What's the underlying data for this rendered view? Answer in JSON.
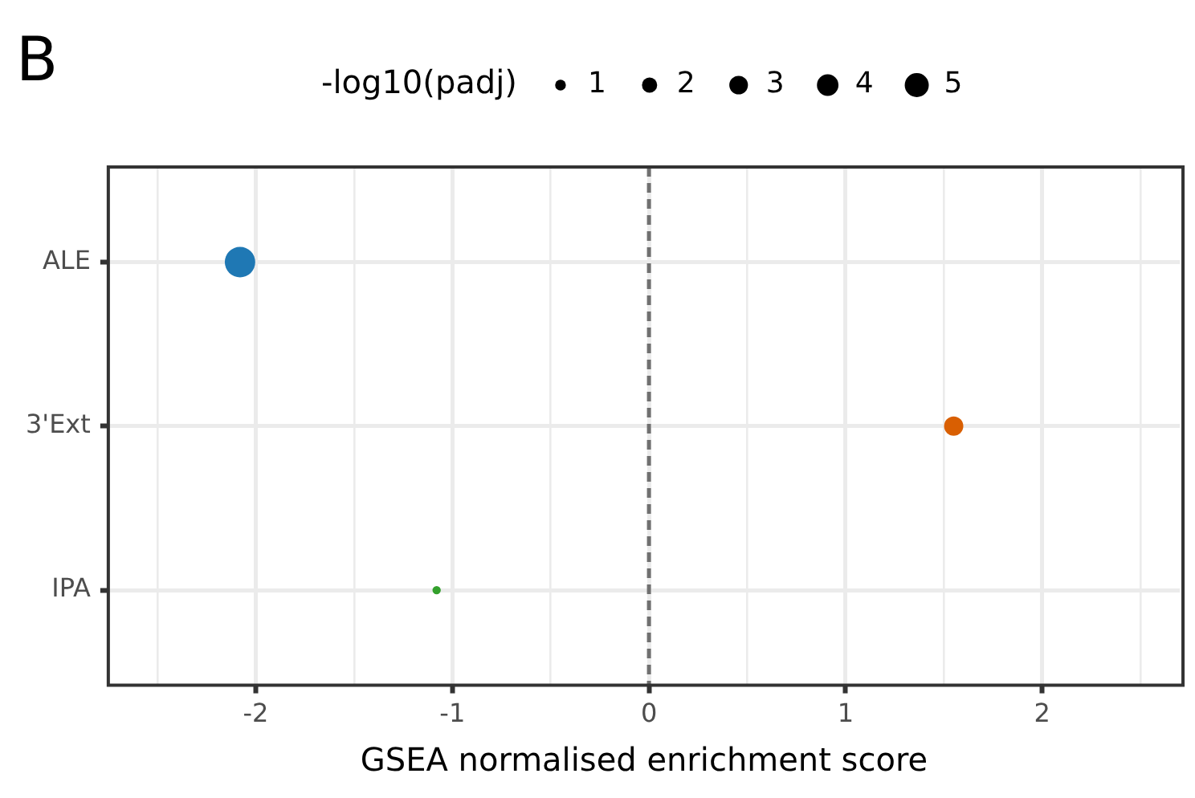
{
  "chart_data": {
    "type": "bubble",
    "orientation": "horizontal",
    "annotations": [
      "B"
    ],
    "xlabel": "GSEA normalised enrichment score",
    "legend_title": "-log10(padj)",
    "size_legend": [
      1,
      2,
      3,
      4,
      5
    ],
    "categories": [
      "ALE",
      "3'Ext",
      "IPA"
    ],
    "values": [
      -2.08,
      1.55,
      -1.08
    ],
    "sizes": [
      8,
      3.2,
      0.6
    ],
    "colors": [
      "#1f78b4",
      "#d95f02",
      "#33a02c"
    ],
    "xlim": [
      -2.75,
      2.7
    ],
    "xticks": [
      {
        "value": -2.5,
        "label": null
      },
      -2,
      {
        "value": -1.5,
        "label": null
      },
      -1,
      {
        "value": -0.5,
        "label": null
      },
      0,
      {
        "value": 0.5,
        "label": null
      },
      1,
      {
        "value": 1.5,
        "label": null
      },
      2,
      {
        "value": 2.5,
        "label": null
      }
    ],
    "grid": true,
    "ref_lines": [
      {
        "axis": "x",
        "value": 0,
        "color": "#707070",
        "line_style": "dashed"
      }
    ]
  }
}
